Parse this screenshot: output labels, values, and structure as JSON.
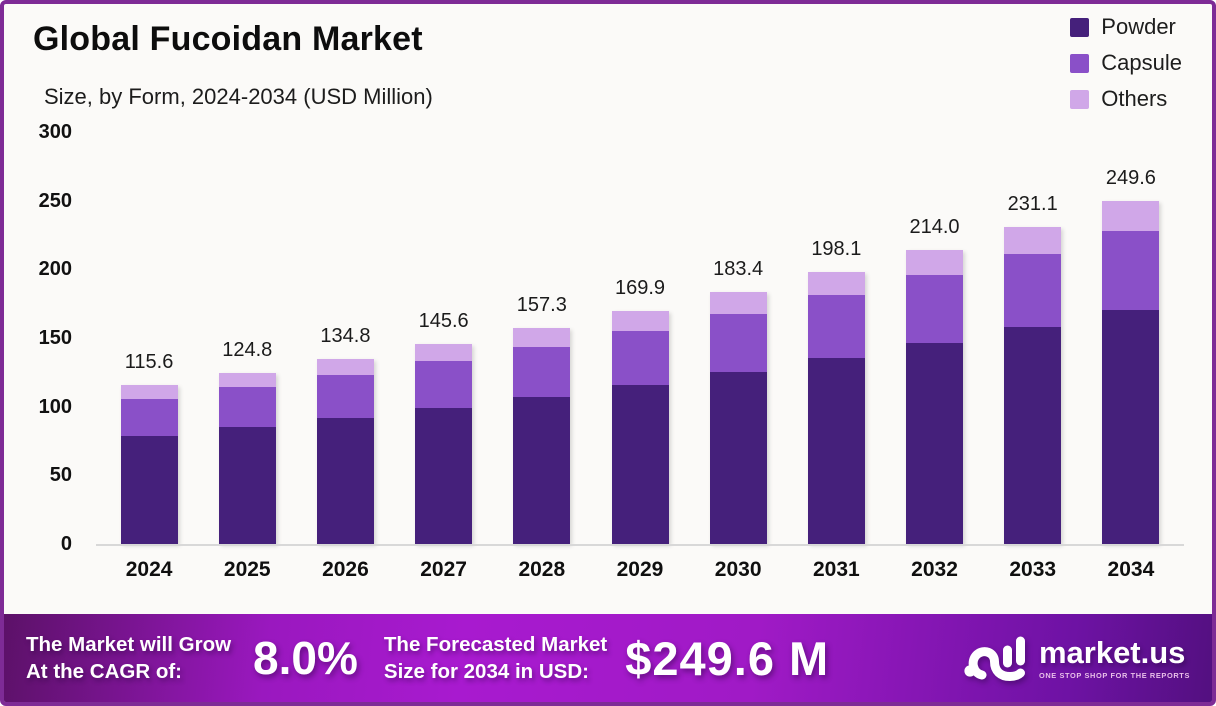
{
  "header": {
    "title": "Global Fucoidan Market",
    "subtitle": "Size, by Form, 2024-2034 (USD Million)"
  },
  "legend": {
    "position": "top-right",
    "items": [
      {
        "label": "Powder",
        "color": "#45207B"
      },
      {
        "label": "Capsule",
        "color": "#8A50C8"
      },
      {
        "label": "Others",
        "color": "#D0A7E8"
      }
    ]
  },
  "chart_data": {
    "type": "bar",
    "stacked": true,
    "title": "Global Fucoidan Market Size, by Form, 2024-2034 (USD Million)",
    "categories": [
      "2024",
      "2025",
      "2026",
      "2027",
      "2028",
      "2029",
      "2030",
      "2031",
      "2032",
      "2033",
      "2034"
    ],
    "series": [
      {
        "name": "Powder",
        "color": "#45207B",
        "values": [
          79.0,
          85.2,
          92.1,
          99.4,
          107.4,
          116.0,
          125.3,
          135.3,
          146.2,
          157.8,
          170.5
        ]
      },
      {
        "name": "Capsule",
        "color": "#8A50C8",
        "values": [
          26.7,
          28.8,
          31.1,
          33.6,
          36.3,
          39.2,
          42.4,
          45.8,
          49.4,
          53.4,
          57.7
        ]
      },
      {
        "name": "Others",
        "color": "#D0A7E8",
        "values": [
          9.9,
          10.8,
          11.6,
          12.6,
          13.6,
          14.7,
          15.7,
          17.0,
          18.4,
          19.9,
          21.4
        ]
      }
    ],
    "totals": [
      115.6,
      124.8,
      134.8,
      145.6,
      157.3,
      169.9,
      183.4,
      198.1,
      214.0,
      231.1,
      249.6
    ],
    "total_labels": [
      "115.6",
      "124.8",
      "134.8",
      "145.6",
      "157.3",
      "169.9",
      "183.4",
      "198.1",
      "214.0",
      "231.1",
      "249.6"
    ],
    "ylabel": "",
    "xlabel": "",
    "ylim": [
      0,
      300
    ],
    "yticks": [
      0,
      50,
      100,
      150,
      200,
      250,
      300
    ],
    "grid": false,
    "legend_position": "top-right"
  },
  "colors": {
    "page_background": "#FBFAF8",
    "page_border": "#7E2B96",
    "axis_line": "#D8D8D8",
    "footer_gradient_left": "#5C1168",
    "footer_gradient_mid": "#A81ACF",
    "footer_gradient_right": "#531080"
  },
  "footer": {
    "cagr": {
      "label_line1": "The Market will Grow",
      "label_line2": "At the CAGR of:",
      "value": "8.0%"
    },
    "forecast": {
      "label_line1": "The Forecasted Market",
      "label_line2": "Size for 2034 in USD:",
      "value": "$249.6 M"
    },
    "brand": {
      "name": "market.us",
      "tagline": "ONE STOP SHOP FOR THE REPORTS"
    }
  }
}
